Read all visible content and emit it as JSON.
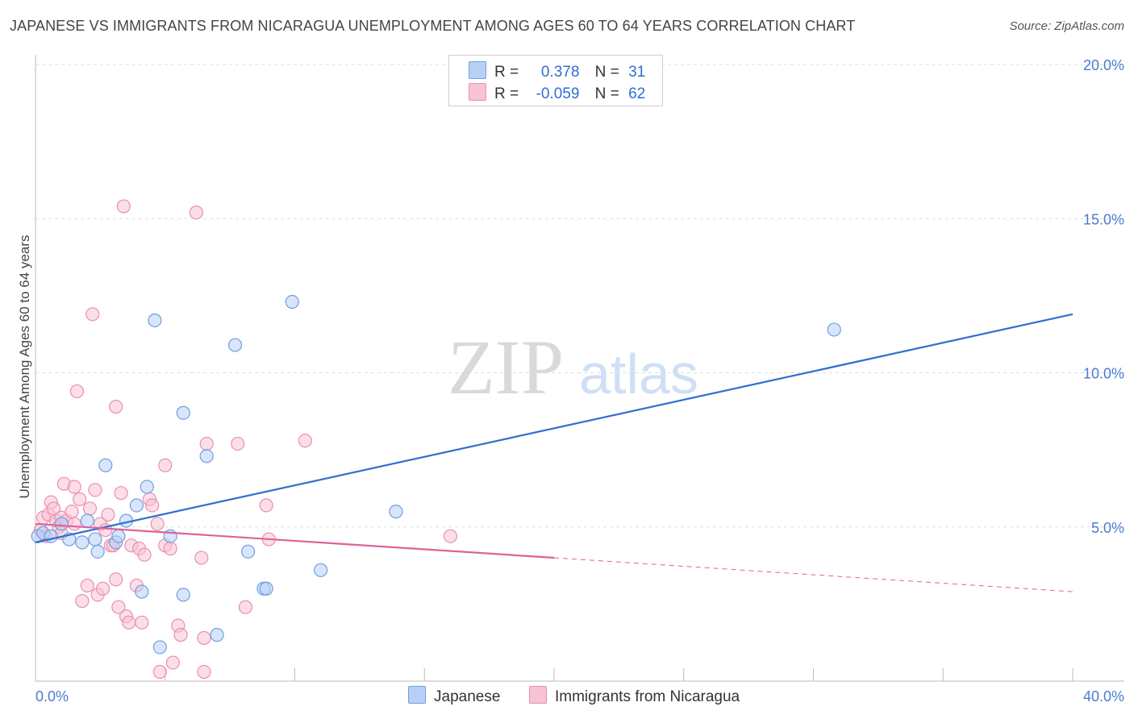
{
  "title": "JAPANESE VS IMMIGRANTS FROM NICARAGUA UNEMPLOYMENT AMONG AGES 60 TO 64 YEARS CORRELATION CHART",
  "source": "Source: ZipAtlas.com",
  "watermark": {
    "zip": "ZIP",
    "atlas": "atlas"
  },
  "colors": {
    "blue_fill": "#b8d0f5",
    "blue_stroke": "#6f9fe0",
    "blue_line": "#2f6fd0",
    "pink_fill": "#f8c3d3",
    "pink_stroke": "#ec8eae",
    "pink_line": "#e0609a",
    "tick_text": "#4a7bd0",
    "grid": "#dddddd"
  },
  "legend": {
    "rows": [
      {
        "r_label": "R =",
        "r_value": "0.378",
        "n_label": "N =",
        "n_value": "31"
      },
      {
        "r_label": "R =",
        "r_value": "-0.059",
        "n_label": "N =",
        "n_value": "62"
      }
    ]
  },
  "chart_data": {
    "type": "scatter",
    "title": "JAPANESE VS IMMIGRANTS FROM NICARAGUA UNEMPLOYMENT AMONG AGES 60 TO 64 YEARS CORRELATION CHART",
    "xlabel": "",
    "ylabel": "Unemployment Among Ages 60 to 64 years",
    "xlim": [
      0,
      40
    ],
    "ylim": [
      0,
      20
    ],
    "x_tick_labels": [
      "0.0%",
      "40.0%"
    ],
    "y_ticks": [
      5,
      10,
      15,
      20
    ],
    "y_tick_labels": [
      "5.0%",
      "10.0%",
      "15.0%",
      "20.0%"
    ],
    "grid": true,
    "legend_placement": "top-center",
    "series": [
      {
        "name": "Japanese",
        "points": [
          [
            0.1,
            4.7
          ],
          [
            0.3,
            4.8
          ],
          [
            0.6,
            4.7
          ],
          [
            1.0,
            5.1
          ],
          [
            1.3,
            4.6
          ],
          [
            1.8,
            4.5
          ],
          [
            2.0,
            5.2
          ],
          [
            2.3,
            4.6
          ],
          [
            2.4,
            4.2
          ],
          [
            2.7,
            7.0
          ],
          [
            3.1,
            4.5
          ],
          [
            3.2,
            4.7
          ],
          [
            3.5,
            5.2
          ],
          [
            3.9,
            5.7
          ],
          [
            4.1,
            2.9
          ],
          [
            4.3,
            6.3
          ],
          [
            4.6,
            11.7
          ],
          [
            4.8,
            1.1
          ],
          [
            5.2,
            4.7
          ],
          [
            5.7,
            8.7
          ],
          [
            5.7,
            2.8
          ],
          [
            6.6,
            7.3
          ],
          [
            7.0,
            1.5
          ],
          [
            7.7,
            10.9
          ],
          [
            8.2,
            4.2
          ],
          [
            8.8,
            3.0
          ],
          [
            8.9,
            3.0
          ],
          [
            9.9,
            12.3
          ],
          [
            11.0,
            3.6
          ],
          [
            13.9,
            5.5
          ],
          [
            30.8,
            11.4
          ]
        ],
        "trend": {
          "from": [
            0,
            4.5
          ],
          "to": [
            40,
            11.9
          ]
        }
      },
      {
        "name": "Immigrants from Nicaragua",
        "points": [
          [
            0.2,
            4.9
          ],
          [
            0.3,
            5.3
          ],
          [
            0.4,
            4.7
          ],
          [
            0.5,
            5.4
          ],
          [
            0.6,
            5.8
          ],
          [
            0.7,
            5.6
          ],
          [
            0.8,
            5.2
          ],
          [
            0.9,
            5.0
          ],
          [
            1.0,
            4.8
          ],
          [
            1.0,
            5.3
          ],
          [
            1.1,
            6.4
          ],
          [
            1.2,
            5.2
          ],
          [
            1.4,
            5.5
          ],
          [
            1.5,
            5.1
          ],
          [
            1.5,
            6.3
          ],
          [
            1.6,
            9.4
          ],
          [
            1.7,
            5.9
          ],
          [
            1.8,
            2.6
          ],
          [
            2.0,
            3.1
          ],
          [
            2.1,
            5.6
          ],
          [
            2.2,
            11.9
          ],
          [
            2.3,
            6.2
          ],
          [
            2.4,
            2.8
          ],
          [
            2.5,
            5.1
          ],
          [
            2.6,
            3.0
          ],
          [
            2.7,
            4.9
          ],
          [
            2.8,
            5.4
          ],
          [
            2.9,
            4.4
          ],
          [
            3.0,
            4.4
          ],
          [
            3.1,
            3.3
          ],
          [
            3.1,
            8.9
          ],
          [
            3.2,
            2.4
          ],
          [
            3.3,
            6.1
          ],
          [
            3.4,
            15.4
          ],
          [
            3.5,
            2.1
          ],
          [
            3.6,
            1.9
          ],
          [
            3.7,
            4.4
          ],
          [
            3.9,
            3.1
          ],
          [
            4.0,
            4.3
          ],
          [
            4.1,
            1.9
          ],
          [
            4.2,
            4.1
          ],
          [
            4.4,
            5.9
          ],
          [
            4.5,
            5.7
          ],
          [
            4.7,
            5.1
          ],
          [
            4.8,
            0.3
          ],
          [
            5.0,
            4.4
          ],
          [
            5.0,
            7.0
          ],
          [
            5.2,
            4.3
          ],
          [
            5.3,
            0.6
          ],
          [
            5.5,
            1.8
          ],
          [
            5.6,
            1.5
          ],
          [
            6.2,
            15.2
          ],
          [
            6.4,
            4.0
          ],
          [
            6.5,
            1.4
          ],
          [
            6.5,
            0.3
          ],
          [
            6.6,
            7.7
          ],
          [
            7.8,
            7.7
          ],
          [
            8.1,
            2.4
          ],
          [
            8.9,
            5.7
          ],
          [
            9.0,
            4.6
          ],
          [
            10.4,
            7.8
          ],
          [
            16.0,
            4.7
          ]
        ],
        "trend": {
          "from": [
            0,
            5.1
          ],
          "to": [
            20,
            4.0
          ]
        },
        "trend_extension": {
          "from": [
            20,
            4.0
          ],
          "to": [
            40,
            2.9
          ]
        }
      }
    ]
  }
}
